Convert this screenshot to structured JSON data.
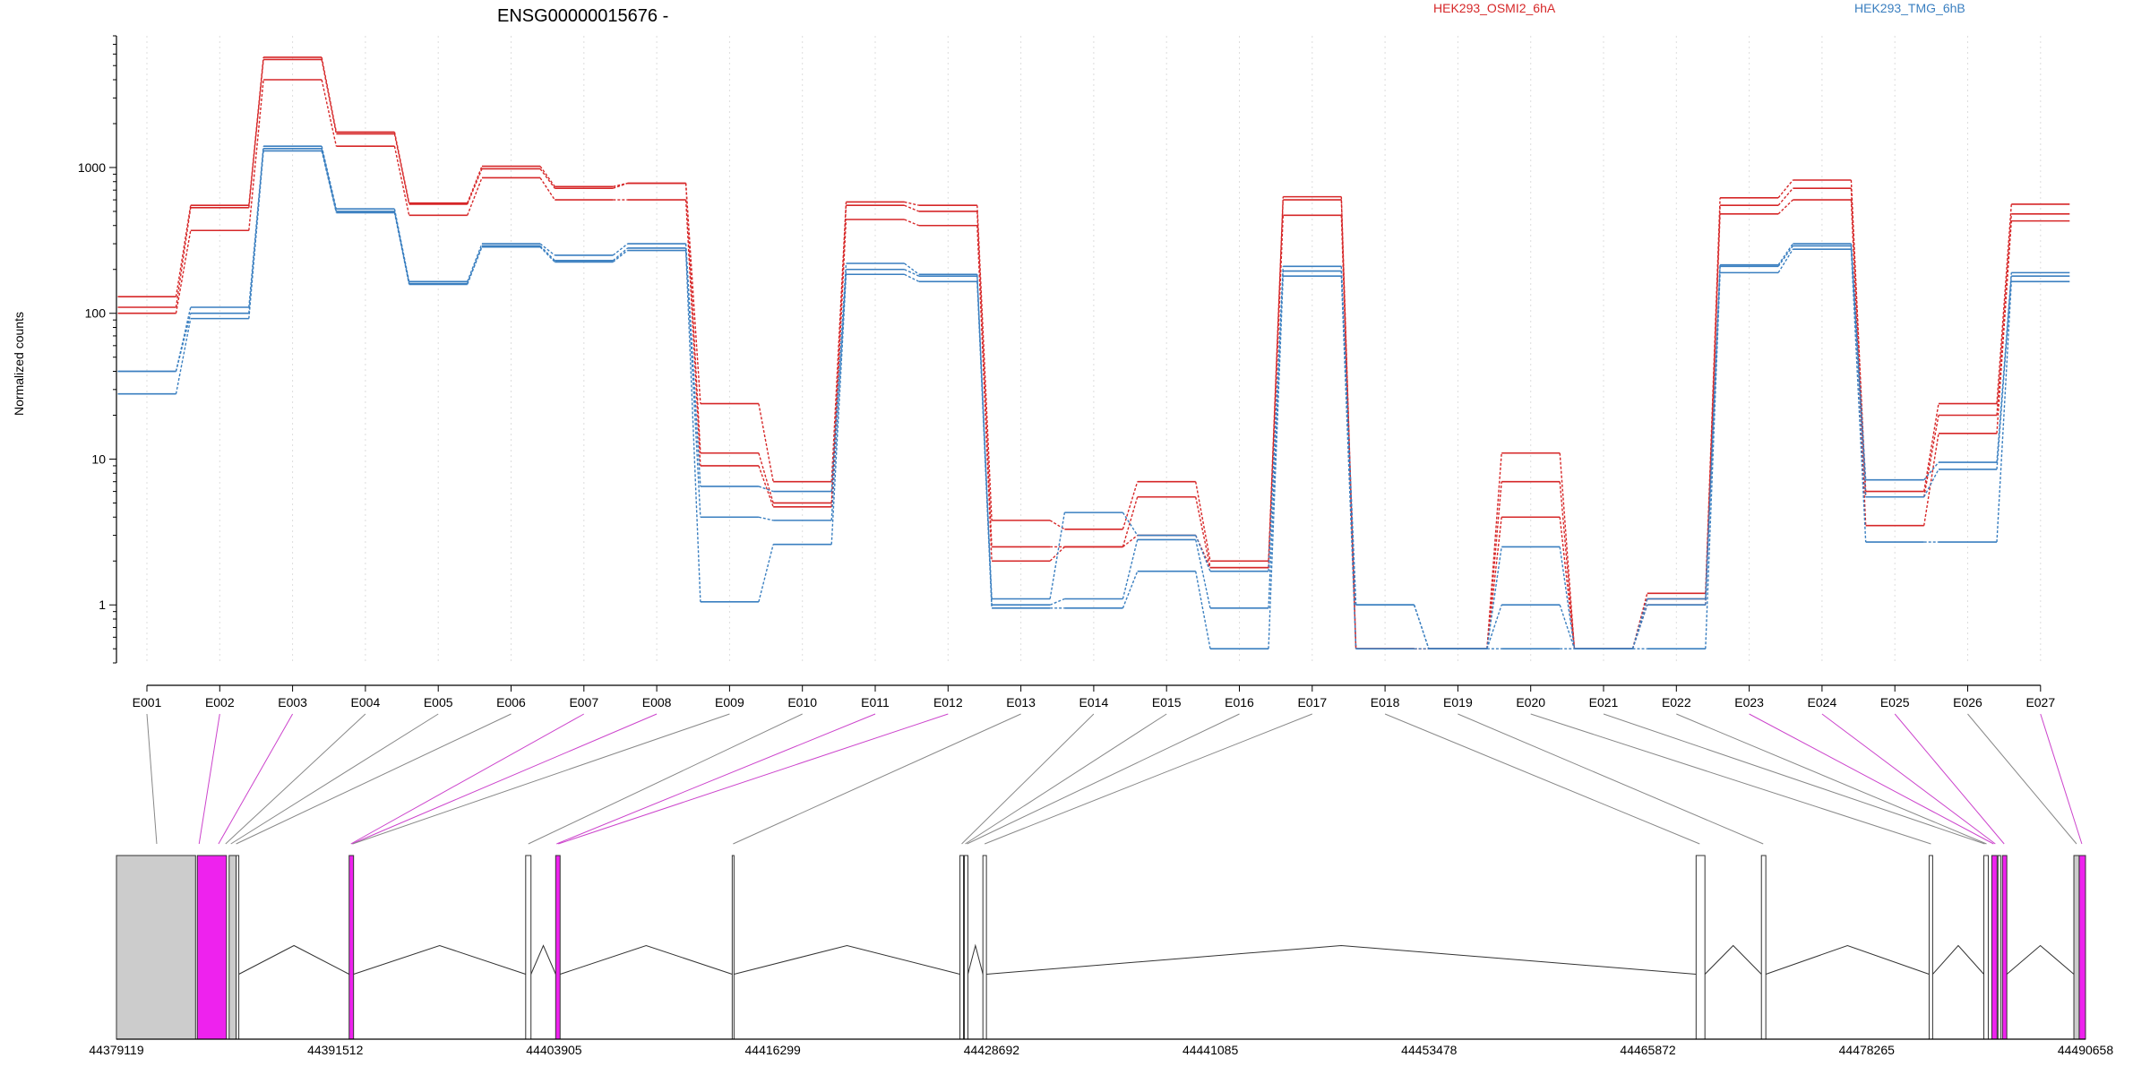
{
  "chart_data": {
    "type": "line",
    "title": "ENSG00000015676 -",
    "ylabel": "Normalized counts",
    "xlabel": "",
    "y_scale": "log",
    "ylim": [
      0.4,
      8000
    ],
    "y_ticks": [
      1,
      10,
      100,
      1000
    ],
    "y_tick_labels": [
      "1",
      "10",
      "100",
      "1000"
    ],
    "grid": "vertical dotted lines at each exon",
    "legend": {
      "placement": "top",
      "entries": [
        {
          "name": "HEK293_OSMI2_6hA",
          "color": "#d62728"
        },
        {
          "name": "HEK293_TMG_6hB",
          "color": "#3a7fc0"
        }
      ]
    },
    "categories": [
      "E001",
      "E002",
      "E003",
      "E004",
      "E005",
      "E006",
      "E007",
      "E008",
      "E009",
      "E010",
      "E011",
      "E012",
      "E013",
      "E014",
      "E015",
      "E016",
      "E017",
      "E018",
      "E019",
      "E020",
      "E021",
      "E022",
      "E023",
      "E024",
      "E025",
      "E026",
      "E027"
    ],
    "series": [
      {
        "name": "HEK293_OSMI2_6hA",
        "color": "#d62728",
        "values": [
          130,
          550,
          5700,
          1750,
          570,
          1020,
          740,
          780,
          24,
          7,
          580,
          550,
          3.8,
          3.3,
          7,
          2,
          630,
          0.5,
          0.5,
          11,
          0.5,
          1.2,
          620,
          820,
          6,
          24,
          560
        ]
      },
      {
        "color": "#d62728",
        "values": [
          110,
          530,
          5500,
          1700,
          560,
          980,
          720,
          780,
          11,
          5,
          550,
          500,
          2.5,
          2.5,
          5.5,
          1.8,
          600,
          0.5,
          0.5,
          7,
          0.5,
          1.1,
          550,
          720,
          5.5,
          20,
          480
        ]
      },
      {
        "color": "#d62728",
        "values": [
          100,
          370,
          4000,
          1400,
          470,
          850,
          600,
          600,
          9,
          4.7,
          440,
          400,
          2,
          2.5,
          3,
          1.8,
          470,
          0.5,
          0.5,
          4,
          0.5,
          1,
          480,
          600,
          3.5,
          15,
          430
        ]
      },
      {
        "name": "HEK293_TMG_6hB",
        "color": "#3a7fc0",
        "values": [
          40,
          110,
          1400,
          520,
          165,
          300,
          250,
          300,
          6.5,
          6,
          220,
          185,
          1.1,
          4.3,
          3,
          1.7,
          210,
          1,
          0.5,
          2.5,
          0.5,
          1.1,
          215,
          300,
          7.2,
          9.5,
          190
        ]
      },
      {
        "color": "#3a7fc0",
        "values": [
          40,
          100,
          1350,
          500,
          160,
          290,
          230,
          280,
          4,
          3.8,
          200,
          180,
          1,
          1.1,
          2.8,
          0.95,
          195,
          1,
          0.5,
          1,
          0.5,
          1,
          210,
          290,
          5.5,
          8.5,
          180
        ]
      },
      {
        "color": "#3a7fc0",
        "values": [
          28,
          92,
          1300,
          490,
          158,
          285,
          225,
          270,
          1.05,
          2.6,
          185,
          165,
          0.95,
          0.95,
          1.7,
          0.5,
          180,
          0.5,
          0.5,
          0.5,
          0.5,
          0.5,
          190,
          275,
          2.7,
          2.7,
          165
        ]
      }
    ],
    "track": {
      "x_tick_labels": [
        "44379119",
        "44391512",
        "44403905",
        "44416299",
        "44428692",
        "44441085",
        "44453478",
        "44465872",
        "44478265",
        "44490658"
      ],
      "range": [
        44379119,
        44490658
      ],
      "highlight_color": "#ee22ee",
      "exon_color": "#cccccc",
      "exons": [
        {
          "start": 44379119,
          "end": 44383600,
          "fill": "#cccccc"
        },
        {
          "start": 44383700,
          "end": 44385350,
          "fill": "#ee22ee"
        },
        {
          "start": 44385500,
          "end": 44385900,
          "fill": "#cccccc"
        },
        {
          "start": 44385900,
          "end": 44386050,
          "fill": "#ffffff"
        },
        {
          "start": 44392300,
          "end": 44392550,
          "fill": "#ee22ee"
        },
        {
          "start": 44402300,
          "end": 44402600,
          "fill": "#ffffff"
        },
        {
          "start": 44404000,
          "end": 44404250,
          "fill": "#ee22ee"
        },
        {
          "start": 44414000,
          "end": 44414100,
          "fill": "#ffffff"
        },
        {
          "start": 44426900,
          "end": 44427100,
          "fill": "#ffffff"
        },
        {
          "start": 44427150,
          "end": 44427350,
          "fill": "#ffffff"
        },
        {
          "start": 44428200,
          "end": 44428400,
          "fill": "#ffffff"
        },
        {
          "start": 44468600,
          "end": 44469100,
          "fill": "#ffffff"
        },
        {
          "start": 44472300,
          "end": 44472550,
          "fill": "#ffffff"
        },
        {
          "start": 44481800,
          "end": 44482000,
          "fill": "#ffffff"
        },
        {
          "start": 44484900,
          "end": 44485150,
          "fill": "#ffffff"
        },
        {
          "start": 44485350,
          "end": 44485650,
          "fill": "#ee22ee"
        },
        {
          "start": 44485700,
          "end": 44485850,
          "fill": "#ffffff"
        },
        {
          "start": 44485950,
          "end": 44486200,
          "fill": "#ee22ee"
        },
        {
          "start": 44490000,
          "end": 44490300,
          "fill": "#cccccc"
        },
        {
          "start": 44490300,
          "end": 44490658,
          "fill": "#ee22ee"
        }
      ],
      "connectors": [
        {
          "exon": 0,
          "pos": 44381400,
          "color": "#888888"
        },
        {
          "exon": 1,
          "pos": 44383800,
          "color": "#cc44cc"
        },
        {
          "exon": 2,
          "pos": 44384900,
          "color": "#cc44cc"
        },
        {
          "exon": 3,
          "pos": 44385300,
          "color": "#888888"
        },
        {
          "exon": 4,
          "pos": 44385600,
          "color": "#888888"
        },
        {
          "exon": 5,
          "pos": 44385900,
          "color": "#888888"
        },
        {
          "exon": 6,
          "pos": 44392400,
          "color": "#cc44cc"
        },
        {
          "exon": 7,
          "pos": 44392450,
          "color": "#cc44cc"
        },
        {
          "exon": 8,
          "pos": 44392500,
          "color": "#888888"
        },
        {
          "exon": 9,
          "pos": 44402450,
          "color": "#888888"
        },
        {
          "exon": 10,
          "pos": 44404050,
          "color": "#cc44cc"
        },
        {
          "exon": 11,
          "pos": 44404150,
          "color": "#cc44cc"
        },
        {
          "exon": 12,
          "pos": 44414050,
          "color": "#888888"
        },
        {
          "exon": 13,
          "pos": 44427000,
          "color": "#888888"
        },
        {
          "exon": 14,
          "pos": 44427200,
          "color": "#888888"
        },
        {
          "exon": 15,
          "pos": 44427300,
          "color": "#888888"
        },
        {
          "exon": 16,
          "pos": 44428300,
          "color": "#888888"
        },
        {
          "exon": 17,
          "pos": 44468800,
          "color": "#888888"
        },
        {
          "exon": 18,
          "pos": 44472400,
          "color": "#888888"
        },
        {
          "exon": 19,
          "pos": 44481900,
          "color": "#888888"
        },
        {
          "exon": 20,
          "pos": 44484950,
          "color": "#888888"
        },
        {
          "exon": 21,
          "pos": 44485050,
          "color": "#888888"
        },
        {
          "exon": 22,
          "pos": 44485450,
          "color": "#cc44cc"
        },
        {
          "exon": 23,
          "pos": 44485550,
          "color": "#cc44cc"
        },
        {
          "exon": 24,
          "pos": 44486050,
          "color": "#cc44cc"
        },
        {
          "exon": 25,
          "pos": 44490150,
          "color": "#888888"
        },
        {
          "exon": 26,
          "pos": 44490450,
          "color": "#cc44cc"
        }
      ]
    }
  }
}
